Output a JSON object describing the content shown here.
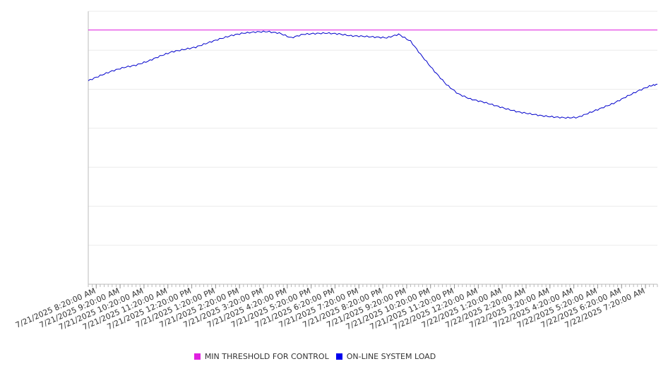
{
  "chart_data": {
    "type": "line",
    "title": "",
    "xlabel": "",
    "ylabel": "",
    "x_start": "7/21/2025 8:00:00 AM",
    "x_end": "7/22/2025 7:50:00 AM",
    "ylim": [
      0,
      7000
    ],
    "y_gridlines": [
      0,
      1000,
      2000,
      3000,
      4000,
      5000,
      6000,
      7000
    ],
    "x_tick_labels": [
      "7/21/2025 8:20:00 AM",
      "7/21/2025 9:20:00 AM",
      "7/21/2025 10:20:00 AM",
      "7/21/2025 11:20:00 AM",
      "7/21/2025 12:20:00 PM",
      "7/21/2025 1:20:00 PM",
      "7/21/2025 2:20:00 PM",
      "7/21/2025 3:20:00 PM",
      "7/21/2025 4:20:00 PM",
      "7/21/2025 5:20:00 PM",
      "7/21/2025 6:20:00 PM",
      "7/21/2025 7:20:00 PM",
      "7/21/2025 8:20:00 PM",
      "7/21/2025 9:20:00 PM",
      "7/21/2025 10:20:00 PM",
      "7/21/2025 11:20:00 PM",
      "7/22/2025 12:20:00 AM",
      "7/22/2025 1:20:00 AM",
      "7/22/2025 2:20:00 AM",
      "7/22/2025 3:20:00 AM",
      "7/22/2025 4:20:00 AM",
      "7/22/2025 5:20:00 AM",
      "7/22/2025 6:20:00 AM",
      "7/22/2025 7:20:00 AM"
    ],
    "legend_position": "bottom",
    "grid": true,
    "series": [
      {
        "name": "MIN THRESHOLD FOR CONTROL",
        "color": "#e020e0",
        "x": [
          "7/21/2025 8:00:00 AM",
          "7/22/2025 7:50:00 AM"
        ],
        "values": [
          6520,
          6520
        ]
      },
      {
        "name": "ON-LINE SYSTEM LOAD",
        "color": "#0000cc",
        "x": [
          "7/21/2025 8:00:00 AM",
          "7/21/2025 8:30:00 AM",
          "7/21/2025 9:00:00 AM",
          "7/21/2025 9:30:00 AM",
          "7/21/2025 10:00:00 AM",
          "7/21/2025 10:30:00 AM",
          "7/21/2025 11:00:00 AM",
          "7/21/2025 11:30:00 AM",
          "7/21/2025 12:00:00 PM",
          "7/21/2025 12:30:00 PM",
          "7/21/2025 1:00:00 PM",
          "7/21/2025 1:30:00 PM",
          "7/21/2025 2:00:00 PM",
          "7/21/2025 2:30:00 PM",
          "7/21/2025 3:00:00 PM",
          "7/21/2025 3:30:00 PM",
          "7/21/2025 4:00:00 PM",
          "7/21/2025 4:30:00 PM",
          "7/21/2025 5:00:00 PM",
          "7/21/2025 5:30:00 PM",
          "7/21/2025 6:00:00 PM",
          "7/21/2025 6:30:00 PM",
          "7/21/2025 7:00:00 PM",
          "7/21/2025 7:30:00 PM",
          "7/21/2025 8:00:00 PM",
          "7/21/2025 8:30:00 PM",
          "7/21/2025 9:00:00 PM",
          "7/21/2025 9:30:00 PM",
          "7/21/2025 10:00:00 PM",
          "7/21/2025 10:30:00 PM",
          "7/21/2025 11:00:00 PM",
          "7/21/2025 11:30:00 PM",
          "7/22/2025 12:00:00 AM",
          "7/22/2025 12:30:00 AM",
          "7/22/2025 1:00:00 AM",
          "7/22/2025 1:30:00 AM",
          "7/22/2025 2:00:00 AM",
          "7/22/2025 2:30:00 AM",
          "7/22/2025 3:00:00 AM",
          "7/22/2025 3:30:00 AM",
          "7/22/2025 4:00:00 AM",
          "7/22/2025 4:30:00 AM",
          "7/22/2025 5:00:00 AM",
          "7/22/2025 5:30:00 AM",
          "7/22/2025 6:00:00 AM",
          "7/22/2025 6:30:00 AM",
          "7/22/2025 7:00:00 AM",
          "7/22/2025 7:30:00 AM",
          "7/22/2025 7:50:00 AM"
        ],
        "values": [
          5220,
          5350,
          5470,
          5560,
          5620,
          5720,
          5850,
          5960,
          6020,
          6080,
          6190,
          6290,
          6380,
          6440,
          6470,
          6480,
          6440,
          6320,
          6410,
          6430,
          6440,
          6420,
          6370,
          6360,
          6340,
          6320,
          6410,
          6230,
          5830,
          5460,
          5120,
          4880,
          4750,
          4680,
          4590,
          4500,
          4420,
          4370,
          4320,
          4290,
          4270,
          4280,
          4400,
          4520,
          4640,
          4800,
          4950,
          5080,
          5130
        ]
      }
    ]
  }
}
